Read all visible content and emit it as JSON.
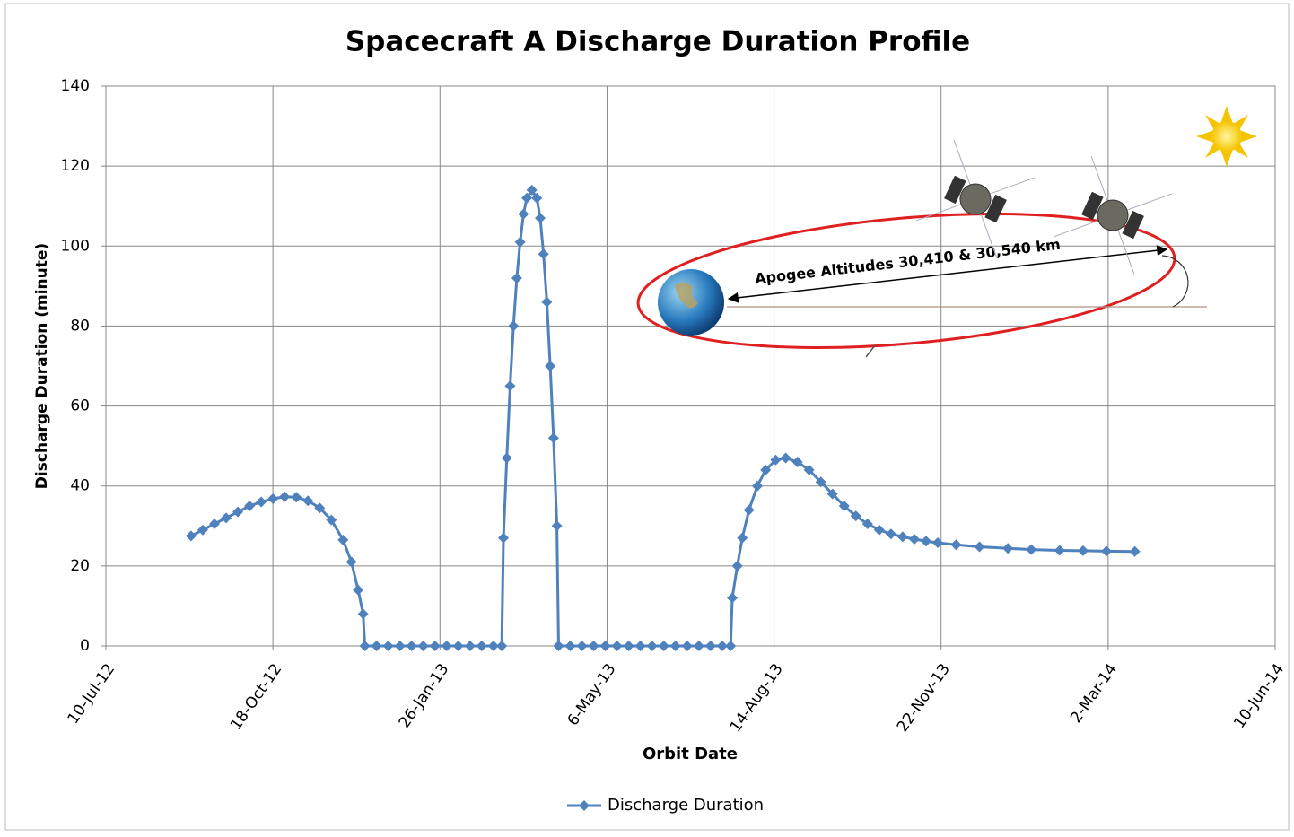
{
  "chart_data": {
    "type": "line",
    "title": "Spacecraft A Discharge Duration Profile",
    "x_label": "Orbit Date",
    "y_label": "Discharge Duration (minute)",
    "annotation": "Apogee Altitudes 30,410 & 30,540 km",
    "xlim": [
      "2012-07-10",
      "2014-06-10"
    ],
    "xticks": [
      {
        "value": "2012-07-10",
        "label": "10-Jul-12"
      },
      {
        "value": "2012-10-18",
        "label": "18-Oct-12"
      },
      {
        "value": "2013-01-26",
        "label": "26-Jan-13"
      },
      {
        "value": "2013-05-06",
        "label": "6-May-13"
      },
      {
        "value": "2013-08-14",
        "label": "14-Aug-13"
      },
      {
        "value": "2013-11-22",
        "label": "22-Nov-13"
      },
      {
        "value": "2014-03-02",
        "label": "2-Mar-14"
      },
      {
        "value": "2014-06-10",
        "label": "10-Jun-14"
      }
    ],
    "ylim": [
      0,
      140
    ],
    "yticks": [
      0,
      20,
      40,
      60,
      80,
      100,
      120,
      140
    ],
    "grid": true,
    "legend": "bottom",
    "x": [
      "2012-08-30",
      "2012-09-06",
      "2012-09-13",
      "2012-09-20",
      "2012-09-27",
      "2012-10-04",
      "2012-10-11",
      "2012-10-18",
      "2012-10-25",
      "2012-11-01",
      "2012-11-08",
      "2012-11-15",
      "2012-11-22",
      "2012-11-29",
      "2012-12-04",
      "2012-12-08",
      "2012-12-11",
      "2012-12-12",
      "2012-12-19",
      "2012-12-26",
      "2013-01-02",
      "2013-01-09",
      "2013-01-16",
      "2013-01-23",
      "2013-01-30",
      "2013-02-06",
      "2013-02-13",
      "2013-02-20",
      "2013-02-27",
      "2013-03-04",
      "2013-03-05",
      "2013-03-07",
      "2013-03-09",
      "2013-03-11",
      "2013-03-13",
      "2013-03-15",
      "2013-03-17",
      "2013-03-19",
      "2013-03-22",
      "2013-03-25",
      "2013-03-27",
      "2013-03-29",
      "2013-03-31",
      "2013-04-02",
      "2013-04-04",
      "2013-04-06",
      "2013-04-07",
      "2013-04-14",
      "2013-04-21",
      "2013-04-28",
      "2013-05-05",
      "2013-05-12",
      "2013-05-19",
      "2013-05-26",
      "2013-06-02",
      "2013-06-09",
      "2013-06-16",
      "2013-06-23",
      "2013-06-30",
      "2013-07-07",
      "2013-07-14",
      "2013-07-19",
      "2013-07-20",
      "2013-07-23",
      "2013-07-26",
      "2013-07-30",
      "2013-08-04",
      "2013-08-09",
      "2013-08-15",
      "2013-08-21",
      "2013-08-28",
      "2013-09-04",
      "2013-09-11",
      "2013-09-18",
      "2013-09-25",
      "2013-10-02",
      "2013-10-09",
      "2013-10-16",
      "2013-10-23",
      "2013-10-30",
      "2013-11-06",
      "2013-11-13",
      "2013-11-20",
      "2013-12-01",
      "2013-12-15",
      "2014-01-01",
      "2014-01-15",
      "2014-02-01",
      "2014-02-15",
      "2014-03-01",
      "2014-03-18"
    ],
    "series": [
      {
        "name": "Discharge Duration",
        "color": "#4f81bd",
        "values": [
          27.5,
          29,
          30.5,
          32,
          33.5,
          35,
          36,
          36.8,
          37.3,
          37.2,
          36.3,
          34.5,
          31.5,
          26.5,
          21,
          14,
          8,
          0,
          0,
          0,
          0,
          0,
          0,
          0,
          0,
          0,
          0,
          0,
          0,
          0,
          27,
          47,
          65,
          80,
          92,
          101,
          108,
          112,
          114,
          112,
          107,
          98,
          86,
          70,
          52,
          30,
          0,
          0,
          0,
          0,
          0,
          0,
          0,
          0,
          0,
          0,
          0,
          0,
          0,
          0,
          0,
          0,
          12,
          20,
          27,
          34,
          40,
          44,
          46.5,
          47,
          46,
          44,
          41,
          38,
          35,
          32.5,
          30.5,
          29,
          28,
          27.3,
          26.7,
          26.2,
          25.8,
          25.3,
          24.8,
          24.4,
          24.1,
          23.9,
          23.8,
          23.7,
          23.6
        ]
      }
    ]
  }
}
